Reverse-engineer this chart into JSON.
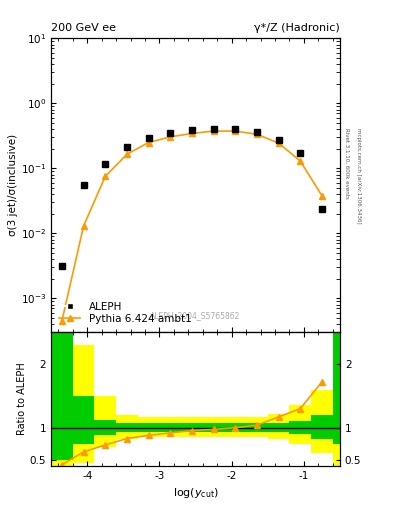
{
  "title_left": "200 GeV ee",
  "title_right": "γ*/Z (Hadronic)",
  "ylabel_main": "σ(3 jet)/σ(inclusive)",
  "ylabel_ratio": "Ratio to ALEPH",
  "xlabel": "log(y_{cut})",
  "right_label_top": "Rivet 3.1.10, 600k events",
  "right_label_bottom": "mcplots.cern.ch [arXiv:1306.3436]",
  "watermark": "ALEPH_2004_S5765862",
  "xlim": [
    -4.5,
    -0.5
  ],
  "ylim_main": [
    0.0003,
    10
  ],
  "ylim_ratio": [
    0.4,
    2.5
  ],
  "ratio_yticks": [
    0.5,
    1.0,
    2.0
  ],
  "aleph_x": [
    -4.35,
    -4.05,
    -3.75,
    -3.45,
    -3.15,
    -2.85,
    -2.55,
    -2.25,
    -1.95,
    -1.65,
    -1.35,
    -1.05,
    -0.75
  ],
  "aleph_y": [
    0.0032,
    0.055,
    0.115,
    0.215,
    0.295,
    0.345,
    0.39,
    0.4,
    0.4,
    0.36,
    0.27,
    0.175,
    0.024
  ],
  "pythia_x": [
    -4.35,
    -4.05,
    -3.75,
    -3.45,
    -3.15,
    -2.85,
    -2.55,
    -2.25,
    -1.95,
    -1.65,
    -1.35,
    -1.05,
    -0.75
  ],
  "pythia_y": [
    0.00045,
    0.013,
    0.075,
    0.165,
    0.25,
    0.305,
    0.345,
    0.375,
    0.375,
    0.335,
    0.245,
    0.13,
    0.038
  ],
  "ratio_x": [
    -4.35,
    -4.05,
    -3.75,
    -3.45,
    -3.15,
    -2.85,
    -2.55,
    -2.25,
    -1.95,
    -1.65,
    -1.35,
    -1.05,
    -0.75
  ],
  "ratio_y": [
    0.42,
    0.62,
    0.73,
    0.83,
    0.88,
    0.92,
    0.955,
    0.975,
    1.0,
    1.04,
    1.17,
    1.3,
    1.72
  ],
  "band_edges": [
    -4.5,
    -4.2,
    -3.9,
    -3.6,
    -3.3,
    -3.0,
    -2.7,
    -2.4,
    -2.1,
    -1.8,
    -1.5,
    -1.2,
    -0.9,
    -0.6
  ],
  "green_lo": [
    0.5,
    0.75,
    0.88,
    0.93,
    0.93,
    0.93,
    0.93,
    0.93,
    0.93,
    0.93,
    0.93,
    0.9,
    0.83,
    0.75
  ],
  "green_hi": [
    2.5,
    1.5,
    1.12,
    1.07,
    1.07,
    1.07,
    1.07,
    1.07,
    1.07,
    1.07,
    1.07,
    1.1,
    1.2,
    2.5
  ],
  "yellow_lo": [
    0.4,
    0.45,
    0.7,
    0.82,
    0.86,
    0.86,
    0.86,
    0.86,
    0.86,
    0.86,
    0.82,
    0.75,
    0.6,
    0.4
  ],
  "yellow_hi": [
    2.5,
    2.3,
    1.5,
    1.2,
    1.17,
    1.17,
    1.17,
    1.17,
    1.17,
    1.17,
    1.22,
    1.35,
    1.6,
    2.5
  ],
  "color_aleph": "#000000",
  "color_pythia": "#ff9900",
  "color_green": "#00cc00",
  "color_yellow": "#ffff00",
  "legend_labels": [
    "ALEPH",
    "Pythia 6.424 ambt1"
  ],
  "xticks": [
    -4,
    -3,
    -2,
    -1
  ]
}
